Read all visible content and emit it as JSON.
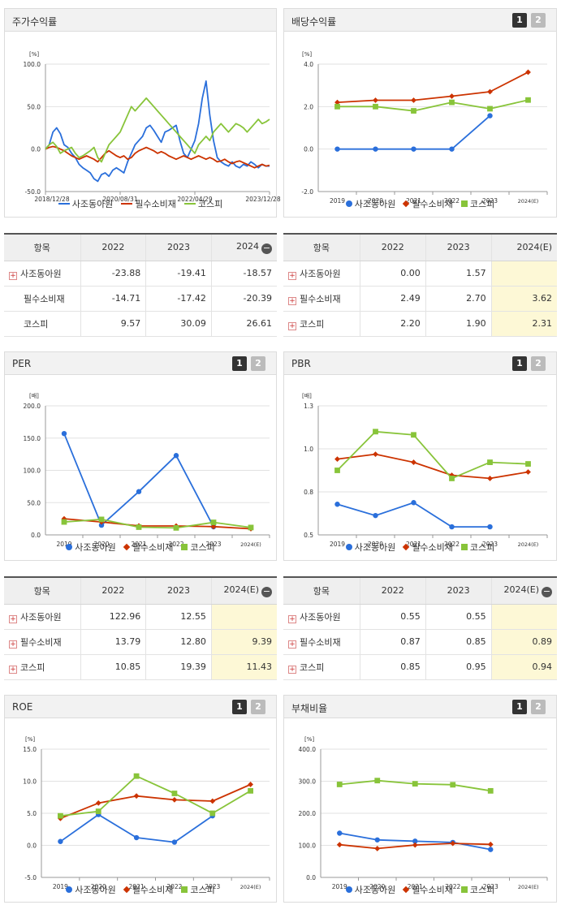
{
  "panels": {
    "price": {
      "title": "주가수익률"
    },
    "dividend": {
      "title": "배당수익률",
      "btn1": "1",
      "btn2": "2"
    },
    "per": {
      "title": "PER",
      "btn1": "1",
      "btn2": "2"
    },
    "pbr": {
      "title": "PBR",
      "btn1": "1",
      "btn2": "2"
    },
    "roe": {
      "title": "ROE",
      "btn1": "1",
      "btn2": "2"
    },
    "debt": {
      "title": "부채비율",
      "btn1": "1",
      "btn2": "2"
    }
  },
  "colors": {
    "sajo": "#2a6fdb",
    "food": "#cc3300",
    "kospi": "#88c43a"
  },
  "legend": {
    "sajo": "사조동아원",
    "food": "필수소비재",
    "kospi": "코스피"
  },
  "tables": {
    "price": {
      "header": [
        "항목",
        "2022",
        "2023",
        "2024"
      ],
      "rows": [
        {
          "name": "사조동아원",
          "plus": true,
          "v": [
            "-23.88",
            "-19.41",
            "-18.57"
          ]
        },
        {
          "name": "필수소비재",
          "plus": false,
          "v": [
            "-14.71",
            "-17.42",
            "-20.39"
          ]
        },
        {
          "name": "코스피",
          "plus": false,
          "v": [
            "9.57",
            "30.09",
            "26.61"
          ]
        }
      ]
    },
    "dividend": {
      "header": [
        "항목",
        "2022",
        "2023",
        "2024(E)"
      ],
      "rows": [
        {
          "name": "사조동아원",
          "plus": true,
          "v": [
            "0.00",
            "1.57",
            ""
          ]
        },
        {
          "name": "필수소비재",
          "plus": true,
          "v": [
            "2.49",
            "2.70",
            "3.62"
          ]
        },
        {
          "name": "코스피",
          "plus": true,
          "v": [
            "2.20",
            "1.90",
            "2.31"
          ]
        }
      ]
    },
    "per": {
      "header": [
        "항목",
        "2022",
        "2023",
        "2024(E)"
      ],
      "rows": [
        {
          "name": "사조동아원",
          "plus": true,
          "v": [
            "122.96",
            "12.55",
            ""
          ]
        },
        {
          "name": "필수소비재",
          "plus": true,
          "v": [
            "13.79",
            "12.80",
            "9.39"
          ]
        },
        {
          "name": "코스피",
          "plus": true,
          "v": [
            "10.85",
            "19.39",
            "11.43"
          ]
        }
      ]
    },
    "pbr": {
      "header": [
        "항목",
        "2022",
        "2023",
        "2024(E)"
      ],
      "rows": [
        {
          "name": "사조동아원",
          "plus": true,
          "v": [
            "0.55",
            "0.55",
            ""
          ]
        },
        {
          "name": "필수소비재",
          "plus": true,
          "v": [
            "0.87",
            "0.85",
            "0.89"
          ]
        },
        {
          "name": "코스피",
          "plus": true,
          "v": [
            "0.85",
            "0.95",
            "0.94"
          ]
        }
      ]
    }
  },
  "chart_data": [
    {
      "id": "price",
      "type": "line",
      "unit": "[%]",
      "ylim": [
        -50,
        100
      ],
      "yticks": [
        "100.0",
        "50.0",
        "0.0",
        "-50.0"
      ],
      "xticklabels": [
        "2018/12/28",
        "2020/08/31",
        "2022/04/29",
        "2023/12/28"
      ],
      "x_range": [
        0,
        60
      ],
      "xtick_positions": [
        0,
        20,
        40,
        60
      ],
      "series": [
        {
          "name": "사조동아원",
          "key": "sajo",
          "values": [
            0,
            5,
            20,
            25,
            18,
            5,
            2,
            -5,
            -10,
            -18,
            -22,
            -25,
            -28,
            -35,
            -38,
            -30,
            -28,
            -32,
            -25,
            -22,
            -25,
            -28,
            -15,
            -5,
            5,
            10,
            15,
            25,
            28,
            22,
            15,
            8,
            20,
            22,
            25,
            28,
            10,
            -5,
            -10,
            0,
            10,
            30,
            60,
            80,
            40,
            10,
            -10,
            -15,
            -18,
            -20,
            -15,
            -20,
            -22,
            -18,
            -20,
            -15,
            -18,
            -22,
            -18,
            -20,
            -20
          ]
        },
        {
          "name": "필수소비재",
          "key": "food",
          "values": [
            0,
            2,
            3,
            2,
            0,
            -2,
            -5,
            -8,
            -10,
            -12,
            -10,
            -8,
            -10,
            -12,
            -15,
            -10,
            -5,
            -2,
            -5,
            -8,
            -10,
            -8,
            -12,
            -10,
            -5,
            -2,
            0,
            2,
            0,
            -2,
            -5,
            -3,
            -5,
            -8,
            -10,
            -12,
            -10,
            -8,
            -10,
            -12,
            -10,
            -8,
            -10,
            -12,
            -10,
            -12,
            -15,
            -14,
            -12,
            -15,
            -17,
            -15,
            -14,
            -16,
            -18,
            -20,
            -22,
            -20,
            -18,
            -20,
            -19
          ]
        },
        {
          "name": "코스피",
          "key": "kospi",
          "values": [
            0,
            5,
            8,
            3,
            -5,
            -2,
            0,
            2,
            -5,
            -10,
            -8,
            -5,
            -2,
            2,
            -10,
            -15,
            -5,
            5,
            10,
            15,
            20,
            30,
            40,
            50,
            45,
            50,
            55,
            60,
            55,
            50,
            45,
            40,
            35,
            30,
            25,
            20,
            15,
            10,
            5,
            0,
            -5,
            5,
            10,
            15,
            10,
            20,
            25,
            30,
            25,
            20,
            25,
            30,
            28,
            25,
            20,
            25,
            30,
            35,
            30,
            32,
            35
          ]
        }
      ]
    },
    {
      "id": "dividend",
      "type": "line",
      "unit": "[%]",
      "ylim": [
        -2,
        4
      ],
      "yticks": [
        "4.0",
        "2.0",
        "0.0",
        "-2.0"
      ],
      "categories": [
        "2019",
        "2020",
        "2021",
        "2022",
        "2023",
        "2024(E)"
      ],
      "series": [
        {
          "name": "사조동아원",
          "key": "sajo",
          "values": [
            0.0,
            0.0,
            0.0,
            0.0,
            1.57,
            null
          ]
        },
        {
          "name": "필수소비재",
          "key": "food",
          "values": [
            2.2,
            2.3,
            2.3,
            2.49,
            2.7,
            3.62
          ]
        },
        {
          "name": "코스피",
          "key": "kospi",
          "values": [
            2.0,
            2.0,
            1.8,
            2.2,
            1.9,
            2.31
          ]
        }
      ]
    },
    {
      "id": "per",
      "type": "line",
      "unit": "[배]",
      "ylim": [
        0,
        200
      ],
      "yticks": [
        "200.0",
        "150.0",
        "100.0",
        "50.0",
        "0.0"
      ],
      "categories": [
        "2019",
        "2020",
        "2021",
        "2022",
        "2023",
        "2024(E)"
      ],
      "series": [
        {
          "name": "사조동아원",
          "key": "sajo",
          "values": [
            157,
            15,
            67,
            122.96,
            12.55,
            null
          ]
        },
        {
          "name": "필수소비재",
          "key": "food",
          "values": [
            25,
            20,
            14,
            13.79,
            12.8,
            9.39
          ]
        },
        {
          "name": "코스피",
          "key": "kospi",
          "values": [
            20,
            24,
            12,
            10.85,
            19.39,
            11.43
          ]
        }
      ]
    },
    {
      "id": "pbr",
      "type": "line",
      "unit": "[배]",
      "ylim": [
        0.5,
        1.3
      ],
      "yticks": [
        "1.3",
        "1.0",
        "0.8",
        "0.5"
      ],
      "categories": [
        "2019",
        "2020",
        "2021",
        "2022",
        "2023",
        "2024(E)"
      ],
      "series": [
        {
          "name": "사조동아원",
          "key": "sajo",
          "values": [
            0.69,
            0.62,
            0.7,
            0.55,
            0.55,
            null
          ]
        },
        {
          "name": "필수소비재",
          "key": "food",
          "values": [
            0.97,
            1.0,
            0.95,
            0.87,
            0.85,
            0.89
          ]
        },
        {
          "name": "코스피",
          "key": "kospi",
          "values": [
            0.9,
            1.14,
            1.12,
            0.85,
            0.95,
            0.94
          ]
        }
      ]
    },
    {
      "id": "roe",
      "type": "line",
      "unit": "[%]",
      "ylim": [
        -5,
        15
      ],
      "yticks": [
        "15.0",
        "10.0",
        "5.0",
        "0.0",
        "-5.0"
      ],
      "categories": [
        "2019",
        "2020",
        "2021",
        "2022",
        "2023",
        "2024(E)"
      ],
      "series": [
        {
          "name": "사조동아원",
          "key": "sajo",
          "values": [
            0.6,
            4.8,
            1.2,
            0.5,
            4.6,
            null
          ]
        },
        {
          "name": "필수소비재",
          "key": "food",
          "values": [
            4.2,
            6.6,
            7.7,
            7.1,
            6.9,
            9.5
          ]
        },
        {
          "name": "코스피",
          "key": "kospi",
          "values": [
            4.6,
            5.3,
            10.8,
            8.1,
            5.0,
            8.5
          ]
        }
      ]
    },
    {
      "id": "debt",
      "type": "line",
      "unit": "[%]",
      "ylim": [
        0,
        400
      ],
      "yticks": [
        "400.0",
        "300.0",
        "200.0",
        "100.0",
        "0.0"
      ],
      "categories": [
        "2019",
        "2020",
        "2021",
        "2022",
        "2023",
        "2024(E)"
      ],
      "series": [
        {
          "name": "사조동아원",
          "key": "sajo",
          "values": [
            138,
            117,
            113,
            109,
            87,
            null
          ]
        },
        {
          "name": "필수소비재",
          "key": "food",
          "values": [
            102,
            90,
            101,
            106,
            103,
            null
          ]
        },
        {
          "name": "코스피",
          "key": "kospi",
          "values": [
            290,
            302,
            292,
            289,
            270,
            null
          ]
        }
      ]
    }
  ]
}
